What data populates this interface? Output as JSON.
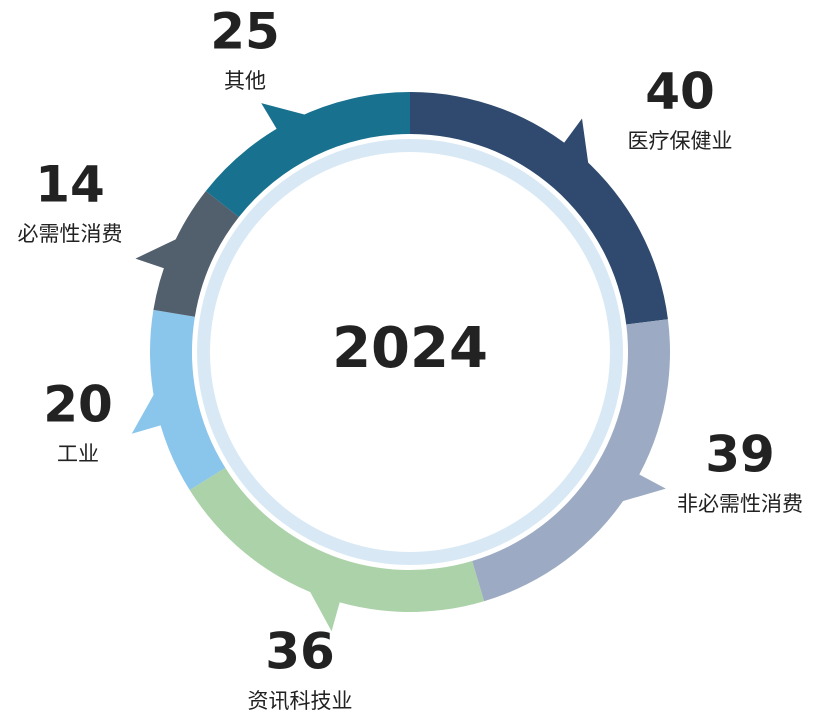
{
  "chart_data": {
    "type": "donut",
    "title": "2024",
    "categories": [
      "医疗保健业",
      "非必需性消费",
      "资讯科技业",
      "工业",
      "必需性消费",
      "其他"
    ],
    "values": [
      40,
      39,
      36,
      20,
      14,
      25
    ],
    "colors": [
      "#2f4a6e",
      "#9cabc3",
      "#abd2a8",
      "#8ac5eb",
      "#525f6c",
      "#17718f"
    ]
  }
}
